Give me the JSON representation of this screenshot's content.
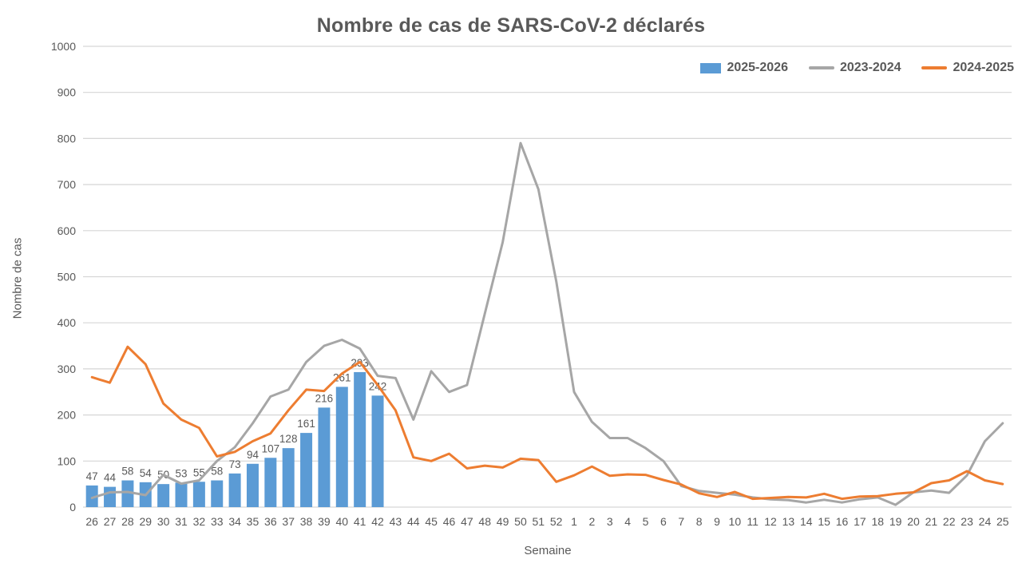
{
  "title": "Nombre de cas de SARS-CoV-2 déclarés",
  "chart_data": {
    "type": "bar",
    "subtype": "combo-bar-line",
    "title": "Nombre de cas de SARS-CoV-2 déclarés",
    "xlabel": "Semaine",
    "ylabel": "Nombre de cas",
    "ylim": [
      0,
      1000
    ],
    "ytick_step": 100,
    "yticks": [
      0,
      100,
      200,
      300,
      400,
      500,
      600,
      700,
      800,
      900,
      1000
    ],
    "grid": true,
    "legend_position": "top-right",
    "categories": [
      "26",
      "27",
      "28",
      "29",
      "30",
      "31",
      "32",
      "33",
      "34",
      "35",
      "36",
      "37",
      "38",
      "39",
      "40",
      "41",
      "42",
      "43",
      "44",
      "45",
      "46",
      "47",
      "48",
      "49",
      "50",
      "51",
      "52",
      "1",
      "2",
      "3",
      "4",
      "5",
      "6",
      "7",
      "8",
      "9",
      "10",
      "11",
      "12",
      "13",
      "14",
      "15",
      "16",
      "17",
      "18",
      "19",
      "20",
      "21",
      "22",
      "23",
      "24",
      "25"
    ],
    "series": [
      {
        "name": "2025-2026",
        "kind": "bar",
        "color": "#5B9BD5",
        "show_labels": true,
        "values": [
          47,
          44,
          58,
          54,
          50,
          53,
          55,
          58,
          73,
          94,
          107,
          128,
          161,
          216,
          261,
          293,
          242,
          null,
          null,
          null,
          null,
          null,
          null,
          null,
          null,
          null,
          null,
          null,
          null,
          null,
          null,
          null,
          null,
          null,
          null,
          null,
          null,
          null,
          null,
          null,
          null,
          null,
          null,
          null,
          null,
          null,
          null,
          null,
          null,
          null,
          null,
          null
        ]
      },
      {
        "name": "2023-2024",
        "kind": "line",
        "color": "#A6A6A6",
        "show_labels": false,
        "values": [
          20,
          32,
          33,
          26,
          70,
          51,
          58,
          100,
          130,
          182,
          240,
          255,
          315,
          350,
          363,
          344,
          285,
          280,
          190,
          295,
          250,
          265,
          420,
          575,
          790,
          690,
          490,
          250,
          185,
          150,
          150,
          128,
          100,
          46,
          35,
          31,
          27,
          21,
          17,
          15,
          10,
          16,
          10,
          17,
          21,
          5,
          32,
          36,
          31,
          69,
          143,
          182
        ]
      },
      {
        "name": "2024-2025",
        "kind": "line",
        "color": "#ED7D31",
        "show_labels": false,
        "values": [
          282,
          270,
          348,
          310,
          225,
          190,
          172,
          110,
          120,
          143,
          160,
          210,
          255,
          252,
          290,
          315,
          265,
          210,
          108,
          100,
          116,
          84,
          90,
          86,
          105,
          102,
          55,
          69,
          88,
          68,
          71,
          70,
          59,
          49,
          30,
          22,
          33,
          18,
          20,
          22,
          21,
          29,
          18,
          23,
          24,
          29,
          32,
          52,
          58,
          78,
          58,
          50
        ]
      }
    ],
    "colors": {
      "grid": "#D6D6D6",
      "axis_text": "#595959",
      "data_label": "#595959",
      "background": "#FFFFFF"
    }
  }
}
